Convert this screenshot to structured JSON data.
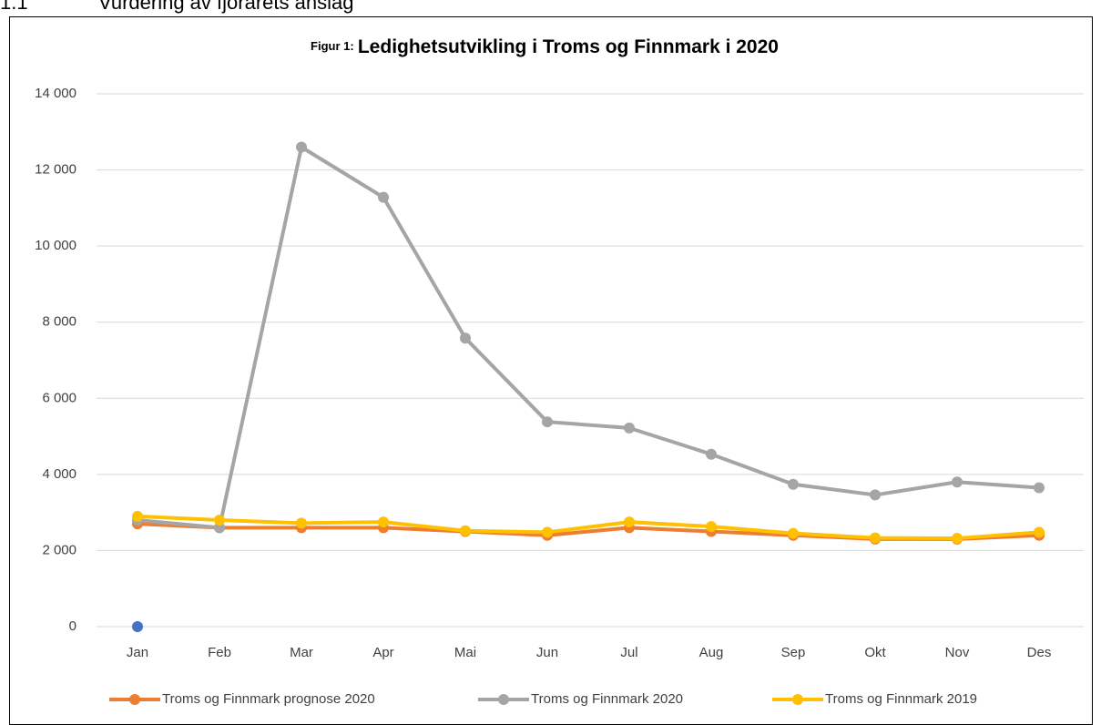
{
  "heading": {
    "number": "1.1",
    "text": "Vurdering av fjorårets anslag"
  },
  "chart_data": {
    "type": "line",
    "title_prefix": "Figur 1:",
    "title": "Ledighetsutvikling i Troms og Finnmark i 2020",
    "categories": [
      "Jan",
      "Feb",
      "Mar",
      "Apr",
      "Mai",
      "Jun",
      "Jul",
      "Aug",
      "Sep",
      "Okt",
      "Nov",
      "Des"
    ],
    "series": [
      {
        "name": "Troms og Finnmark prognose 2020",
        "color": "#ED7D31",
        "values": [
          2700,
          2600,
          2600,
          2600,
          2500,
          2400,
          2600,
          2500,
          2400,
          2300,
          2300,
          2400
        ]
      },
      {
        "name": "Troms og Finnmark 2020",
        "color": "#A5A5A5",
        "values": [
          2800,
          2600,
          12600,
          11280,
          7580,
          5380,
          5220,
          4530,
          3740,
          3460,
          3800,
          3650
        ]
      },
      {
        "name": "Troms og Finnmark 2019",
        "color": "#FFC000",
        "values": [
          2900,
          2800,
          2720,
          2750,
          2520,
          2480,
          2750,
          2630,
          2450,
          2330,
          2320,
          2480
        ]
      },
      {
        "color": "#4472C4",
        "values": [
          0,
          null,
          null,
          null,
          null,
          null,
          null,
          null,
          null,
          null,
          null,
          null
        ]
      }
    ],
    "ylim": [
      0,
      14000
    ],
    "yticks": [
      0,
      {
        "value": 2000,
        "label": "2 000"
      },
      {
        "value": 4000,
        "label": "4 000"
      },
      {
        "value": 6000,
        "label": "6 000"
      },
      {
        "value": 8000,
        "label": "8 000"
      },
      {
        "value": 10000,
        "label": "10 000"
      },
      {
        "value": 12000,
        "label": "12 000"
      },
      {
        "value": 14000,
        "label": "14 000"
      }
    ],
    "grid": true,
    "legend": "bottom"
  }
}
